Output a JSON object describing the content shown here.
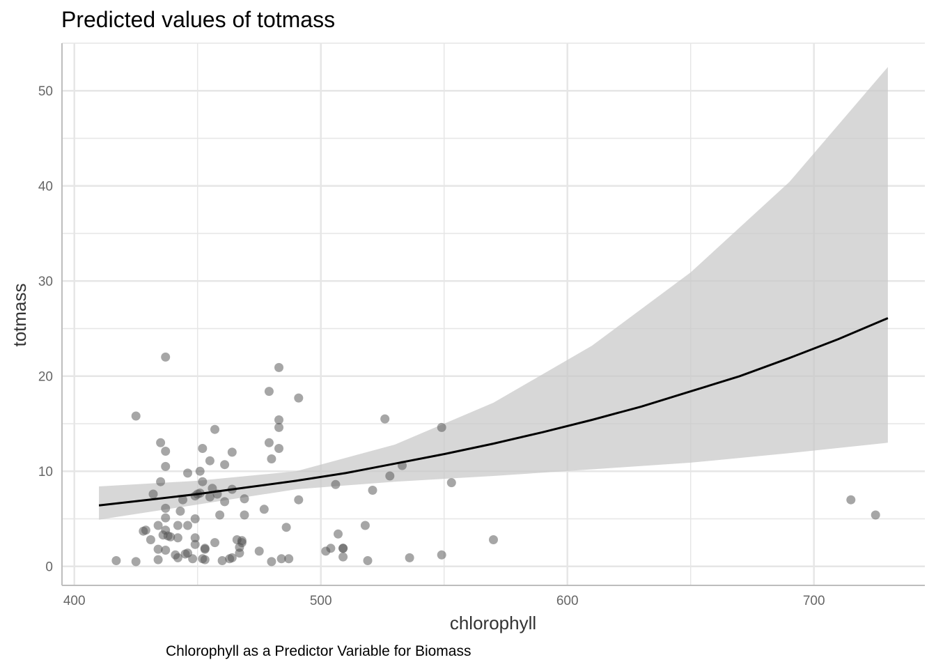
{
  "chart_data": {
    "type": "scatter",
    "title": "Predicted values of totmass",
    "xlabel": "chlorophyll",
    "ylabel": "totmass",
    "caption": "Chlorophyll as a Predictor Variable for Biomass",
    "xlim": [
      395,
      745
    ],
    "ylim": [
      -2,
      55
    ],
    "x_ticks": [
      400,
      500,
      600,
      700
    ],
    "y_ticks": [
      0,
      10,
      20,
      30,
      40,
      50
    ],
    "x_tick_labels": [
      "400",
      "500",
      "600",
      "700"
    ],
    "y_tick_labels": [
      "0",
      "10",
      "20",
      "30",
      "40",
      "50"
    ],
    "grid": true,
    "colors": {
      "points": "#4d4d4d",
      "ribbon": "#c8c8c8",
      "line": "#000000",
      "grid": "#e6e6e6",
      "axis": "#bdbdbd"
    },
    "points": [
      [
        417,
        0.6
      ],
      [
        425,
        0.5
      ],
      [
        425,
        15.8
      ],
      [
        428,
        3.7
      ],
      [
        429,
        3.8
      ],
      [
        431,
        2.8
      ],
      [
        432,
        7.6
      ],
      [
        434,
        0.7
      ],
      [
        434,
        1.8
      ],
      [
        434,
        4.3
      ],
      [
        435,
        13.0
      ],
      [
        435,
        8.9
      ],
      [
        436,
        3.3
      ],
      [
        437,
        22.0
      ],
      [
        437,
        12.1
      ],
      [
        437,
        10.5
      ],
      [
        437,
        6.1
      ],
      [
        437,
        5.1
      ],
      [
        437,
        3.8
      ],
      [
        437,
        1.7
      ],
      [
        438,
        3.2
      ],
      [
        439,
        3.1
      ],
      [
        441,
        1.2
      ],
      [
        442,
        0.9
      ],
      [
        442,
        4.3
      ],
      [
        442,
        3.0
      ],
      [
        443,
        5.8
      ],
      [
        444,
        7.0
      ],
      [
        445,
        1.3
      ],
      [
        446,
        9.8
      ],
      [
        446,
        4.3
      ],
      [
        446,
        1.4
      ],
      [
        448,
        0.8
      ],
      [
        449,
        7.4
      ],
      [
        449,
        5.0
      ],
      [
        449,
        3.0
      ],
      [
        449,
        2.3
      ],
      [
        450,
        7.6
      ],
      [
        451,
        10.0
      ],
      [
        451,
        7.7
      ],
      [
        452,
        12.4
      ],
      [
        452,
        8.9
      ],
      [
        452,
        0.8
      ],
      [
        453,
        1.9
      ],
      [
        453,
        0.7
      ],
      [
        453,
        1.8
      ],
      [
        455,
        11.1
      ],
      [
        455,
        7.3
      ],
      [
        456,
        8.2
      ],
      [
        457,
        14.4
      ],
      [
        457,
        2.5
      ],
      [
        458,
        7.6
      ],
      [
        459,
        5.4
      ],
      [
        460,
        0.6
      ],
      [
        461,
        10.7
      ],
      [
        461,
        6.8
      ],
      [
        463,
        0.8
      ],
      [
        464,
        12.0
      ],
      [
        464,
        8.1
      ],
      [
        464,
        0.9
      ],
      [
        466,
        2.8
      ],
      [
        467,
        2.0
      ],
      [
        467,
        1.4
      ],
      [
        468,
        2.7
      ],
      [
        468,
        2.5
      ],
      [
        469,
        7.1
      ],
      [
        469,
        5.4
      ],
      [
        475,
        1.6
      ],
      [
        477,
        6.0
      ],
      [
        479,
        18.4
      ],
      [
        479,
        13.0
      ],
      [
        480,
        11.3
      ],
      [
        480,
        0.5
      ],
      [
        483,
        20.9
      ],
      [
        483,
        15.4
      ],
      [
        483,
        14.6
      ],
      [
        483,
        12.4
      ],
      [
        484,
        0.8
      ],
      [
        486,
        4.1
      ],
      [
        487,
        0.8
      ],
      [
        491,
        17.7
      ],
      [
        491,
        7.0
      ],
      [
        502,
        1.6
      ],
      [
        504,
        1.9
      ],
      [
        506,
        8.6
      ],
      [
        507,
        3.4
      ],
      [
        509,
        1.0
      ],
      [
        509,
        1.9
      ],
      [
        509,
        1.9
      ],
      [
        518,
        4.3
      ],
      [
        519,
        0.6
      ],
      [
        521,
        8.0
      ],
      [
        526,
        15.5
      ],
      [
        528,
        9.5
      ],
      [
        533,
        10.6
      ],
      [
        536,
        0.9
      ],
      [
        549,
        14.6
      ],
      [
        549,
        1.2
      ],
      [
        553,
        8.8
      ],
      [
        570,
        2.8
      ],
      [
        715,
        7.0
      ],
      [
        725,
        5.4
      ]
    ],
    "series": [
      {
        "type": "line",
        "x": [
          410,
          430,
          450,
          470,
          490,
          510,
          530,
          550,
          570,
          590,
          610,
          630,
          650,
          670,
          690,
          710,
          730
        ],
        "y": [
          6.4,
          7.0,
          7.6,
          8.3,
          9.0,
          9.8,
          10.8,
          11.8,
          12.9,
          14.1,
          15.4,
          16.8,
          18.4,
          20.0,
          21.9,
          23.9,
          26.1
        ]
      }
    ],
    "ribbon": {
      "x": [
        410,
        450,
        490,
        530,
        570,
        610,
        650,
        690,
        730
      ],
      "lower": [
        4.9,
        6.5,
        8.1,
        8.9,
        9.5,
        10.2,
        10.9,
        11.9,
        13.0
      ],
      "upper": [
        8.4,
        9.0,
        10.0,
        12.8,
        17.2,
        23.2,
        30.9,
        40.4,
        52.5
      ]
    }
  }
}
